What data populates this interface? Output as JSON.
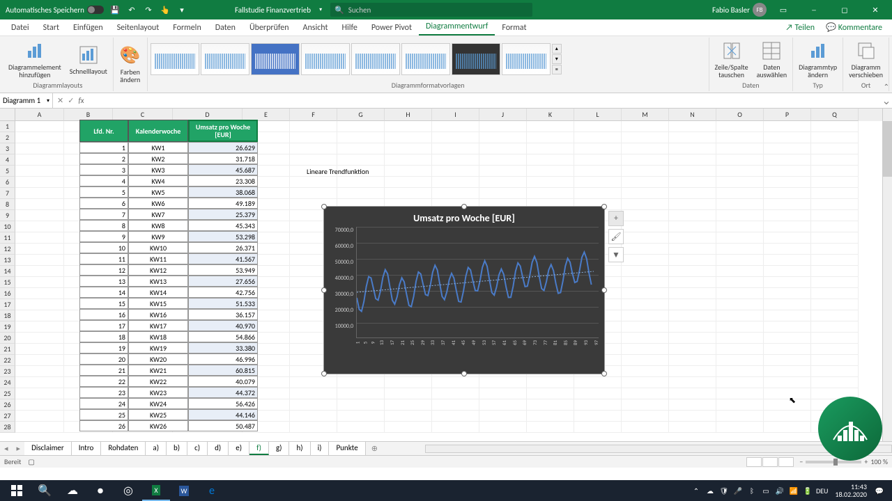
{
  "title": {
    "autosave": "Automatisches Speichern",
    "doc": "Fallstudie Finanzvertrieb",
    "search_placeholder": "Suchen",
    "user": "Fabio Basler",
    "initials": "FB"
  },
  "tabs": [
    "Datei",
    "Start",
    "Einfügen",
    "Seitenlayout",
    "Formeln",
    "Daten",
    "Überprüfen",
    "Ansicht",
    "Hilfe",
    "Power Pivot",
    "Diagrammentwurf",
    "Format"
  ],
  "active_tab": 10,
  "share": "Teilen",
  "comments": "Kommentare",
  "ribbon": {
    "layouts": {
      "el": "Diagrammelement\nhinzufügen",
      "quick": "Schnelllayout",
      "label": "Diagrammlayouts"
    },
    "colors": "Farben\nändern",
    "styles_label": "Diagrammformatvorlagen",
    "data": {
      "swap": "Zeile/Spalte\ntauschen",
      "select": "Daten\nauswählen",
      "label": "Daten"
    },
    "type": {
      "btn": "Diagrammtyp\nändern",
      "label": "Typ"
    },
    "loc": {
      "btn": "Diagramm\nverschieben",
      "label": "Ort"
    }
  },
  "namebox": "Diagramm 1",
  "table": {
    "headers": [
      "Lfd. Nr.",
      "Kalenderwoche",
      "Umsatz pro Woche [EUR]"
    ],
    "rows": [
      [
        1,
        "KW1",
        "26.629"
      ],
      [
        2,
        "KW2",
        "31.718"
      ],
      [
        3,
        "KW3",
        "45.687"
      ],
      [
        4,
        "KW4",
        "23.308"
      ],
      [
        5,
        "KW5",
        "38.068"
      ],
      [
        6,
        "KW6",
        "49.189"
      ],
      [
        7,
        "KW7",
        "25.379"
      ],
      [
        8,
        "KW8",
        "45.343"
      ],
      [
        9,
        "KW9",
        "53.298"
      ],
      [
        10,
        "KW10",
        "26.371"
      ],
      [
        11,
        "KW11",
        "41.567"
      ],
      [
        12,
        "KW12",
        "53.949"
      ],
      [
        13,
        "KW13",
        "27.656"
      ],
      [
        14,
        "KW14",
        "42.756"
      ],
      [
        15,
        "KW15",
        "51.533"
      ],
      [
        16,
        "KW16",
        "36.157"
      ],
      [
        17,
        "KW17",
        "40.970"
      ],
      [
        18,
        "KW18",
        "54.866"
      ],
      [
        19,
        "KW19",
        "33.380"
      ],
      [
        20,
        "KW20",
        "46.996"
      ],
      [
        21,
        "KW21",
        "60.815"
      ],
      [
        22,
        "KW22",
        "40.079"
      ],
      [
        23,
        "KW23",
        "44.372"
      ],
      [
        24,
        "KW24",
        "56.426"
      ],
      [
        25,
        "KW25",
        "44.146"
      ],
      [
        26,
        "KW26",
        "50.487"
      ]
    ]
  },
  "trend_text": "Lineare Trendfunktion",
  "chart": {
    "title": "Umsatz pro Woche [EUR]",
    "bg": "#3a3a3a",
    "line_color": "#4a7bc8",
    "y_labels": [
      "70000,0",
      "60000,0",
      "50000,0",
      "40000,0",
      "30000,0",
      "20000,0",
      "10000,0"
    ],
    "x_ticks": [
      "1",
      "5",
      "9",
      "13",
      "17",
      "21",
      "25",
      "29",
      "33",
      "37",
      "41",
      "45",
      "49",
      "53",
      "57",
      "61",
      "65",
      "69",
      "73",
      "77",
      "81",
      "85",
      "89",
      "93",
      "97"
    ]
  },
  "sheets": [
    "Disclaimer",
    "Intro",
    "Rohdaten",
    "a)",
    "b)",
    "c)",
    "d)",
    "e)",
    "f)",
    "g)",
    "h)",
    "i)",
    "Punkte"
  ],
  "active_sheet": 8,
  "status": "Bereit",
  "zoom": "100 %",
  "lang": "DEU",
  "time": "11:43",
  "date": "18.02.2020"
}
